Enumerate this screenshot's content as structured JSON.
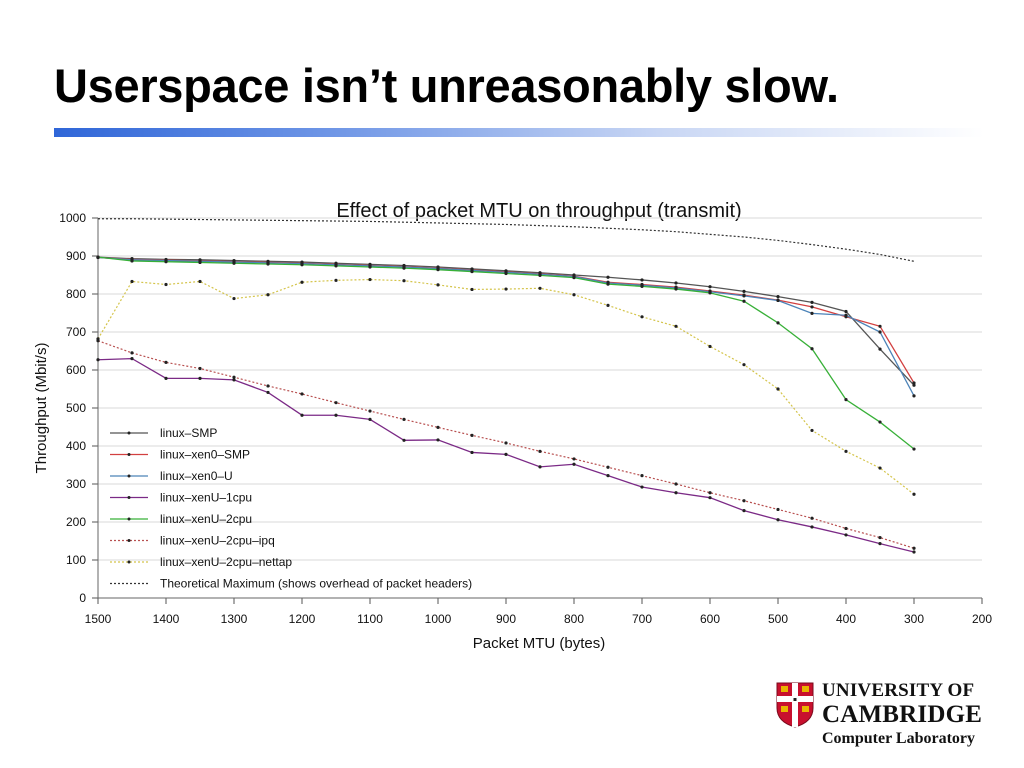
{
  "slide": {
    "title": "Userspace isn’t unreasonably slow."
  },
  "logo": {
    "line1": "UNIVERSITY OF",
    "line2": "CAMBRIDGE",
    "line3": "Computer Laboratory",
    "shield_color": "#c8102e"
  },
  "chart_data": {
    "type": "line",
    "title": "Effect of packet MTU on throughput (transmit)",
    "xlabel": "Packet MTU (bytes)",
    "ylabel": "Throughput (Mbit/s)",
    "xlim": [
      1500,
      200
    ],
    "ylim": [
      0,
      1000
    ],
    "x_ticks": [
      1500,
      1400,
      1300,
      1200,
      1100,
      1000,
      900,
      800,
      700,
      600,
      500,
      400,
      300,
      200
    ],
    "y_ticks": [
      0,
      100,
      200,
      300,
      400,
      500,
      600,
      700,
      800,
      900,
      1000
    ],
    "grid": "horizontal",
    "legend_position": "bottom-left",
    "x": [
      1500,
      1450,
      1400,
      1350,
      1300,
      1250,
      1200,
      1150,
      1100,
      1050,
      1000,
      950,
      900,
      850,
      800,
      750,
      700,
      650,
      600,
      550,
      500,
      450,
      400,
      350,
      300
    ],
    "series": [
      {
        "name": "linux–SMP",
        "color": "#555555",
        "dash": "solid",
        "values": [
          897,
          893,
          891,
          890,
          888,
          886,
          884,
          881,
          878,
          875,
          871,
          866,
          861,
          856,
          850,
          844,
          837,
          829,
          819,
          807,
          793,
          778,
          754,
          655,
          560
        ]
      },
      {
        "name": "linux–xen0–SMP",
        "color": "#d24040",
        "dash": "solid",
        "values": [
          896,
          891,
          889,
          887,
          885,
          883,
          881,
          878,
          875,
          872,
          868,
          863,
          858,
          853,
          847,
          831,
          825,
          818,
          808,
          797,
          784,
          766,
          740,
          715,
          566
        ]
      },
      {
        "name": "linux–xen0–U",
        "color": "#4c83b8",
        "dash": "solid",
        "values": [
          896,
          890,
          888,
          886,
          884,
          882,
          880,
          877,
          874,
          871,
          867,
          862,
          857,
          852,
          846,
          829,
          823,
          816,
          806,
          795,
          783,
          749,
          744,
          700,
          532
        ]
      },
      {
        "name": "linux–xenU–1cpu",
        "color": "#7b2a86",
        "dash": "solid",
        "values": [
          627,
          630,
          578,
          578,
          574,
          541,
          481,
          481,
          470,
          415,
          416,
          383,
          378,
          345,
          352,
          322,
          292,
          277,
          264,
          230,
          206,
          187,
          166,
          143,
          121
        ]
      },
      {
        "name": "linux–xenU–2cpu",
        "color": "#38b038",
        "dash": "solid",
        "values": [
          897,
          887,
          885,
          883,
          881,
          879,
          877,
          874,
          871,
          868,
          864,
          859,
          854,
          849,
          843,
          826,
          820,
          813,
          803,
          781,
          724,
          656,
          522,
          463,
          392
        ]
      },
      {
        "name": "linux–xenU–2cpu–ipq",
        "color": "#b85050",
        "dash": "dotted",
        "values": [
          677,
          645,
          620,
          604,
          581,
          558,
          537,
          514,
          492,
          470,
          449,
          428,
          408,
          386,
          366,
          344,
          322,
          300,
          277,
          256,
          233,
          210,
          183,
          159,
          131
        ]
      },
      {
        "name": "linux–xenU–2cpu–nettap",
        "color": "#d4c44a",
        "dash": "dotted",
        "values": [
          682,
          833,
          825,
          833,
          788,
          798,
          831,
          836,
          838,
          835,
          824,
          812,
          813,
          815,
          798,
          770,
          740,
          715,
          662,
          614,
          550,
          441,
          386,
          342,
          273
        ]
      },
      {
        "name": "Theoretical Maximum (shows overhead of packet headers)",
        "color": "#333333",
        "dash": "dotted",
        "values": [
          998,
          998,
          997,
          996,
          995,
          994,
          993,
          992,
          991,
          989,
          987,
          985,
          983,
          980,
          977,
          973,
          969,
          964,
          957,
          950,
          941,
          930,
          918,
          904,
          886
        ]
      }
    ]
  }
}
